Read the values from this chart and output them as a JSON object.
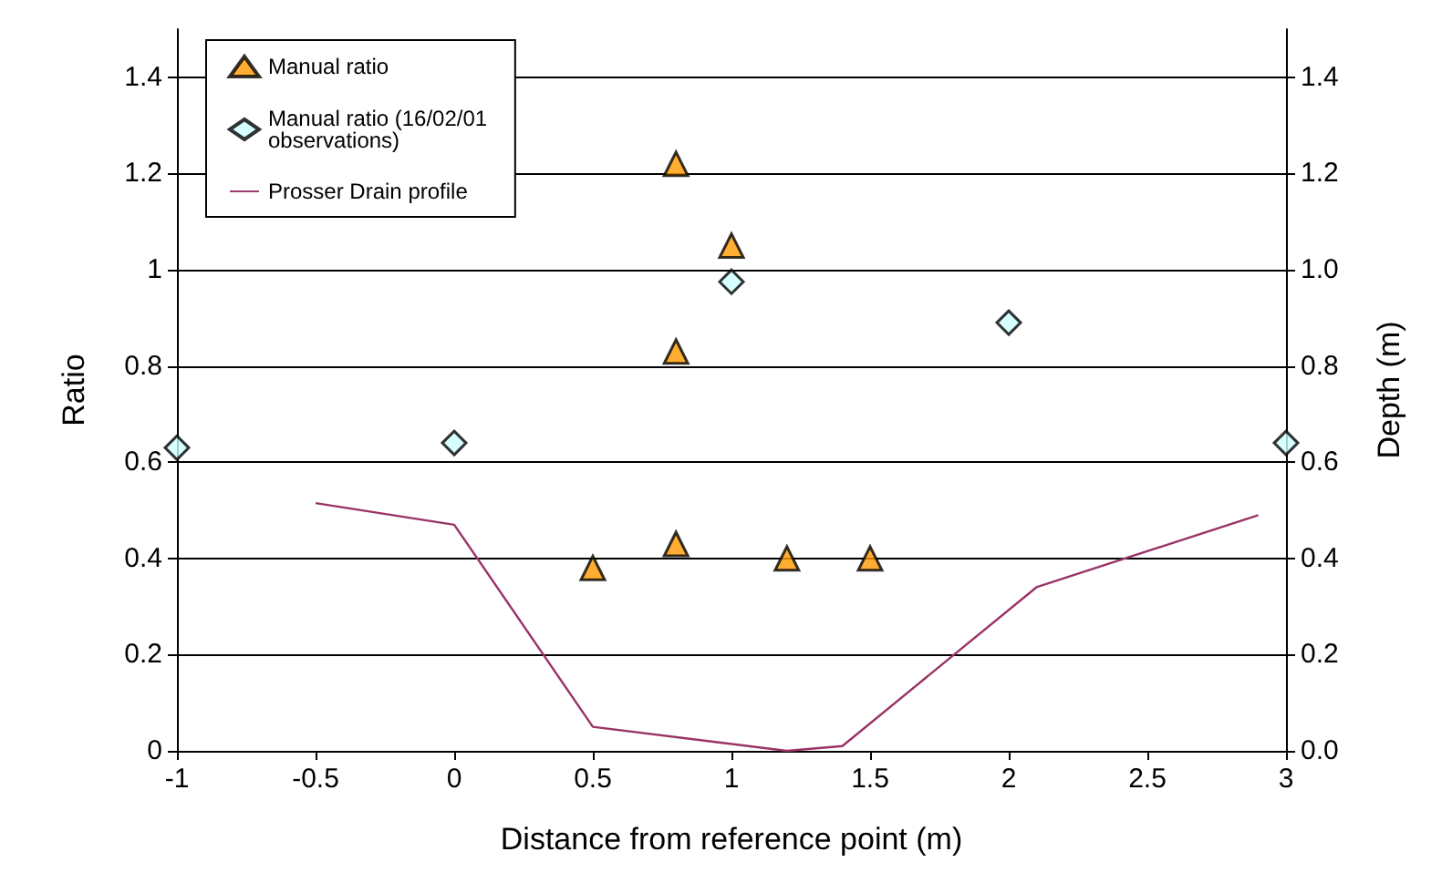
{
  "chart_data": {
    "type": "scatter",
    "xlabel": "Distance from reference point (m)",
    "ylabel": "Ratio",
    "y2label": "Depth (m)",
    "xlim": [
      -1,
      3
    ],
    "xticks": [
      -1,
      -0.5,
      0,
      0.5,
      1,
      1.5,
      2,
      2.5,
      3
    ],
    "ylim": [
      0,
      1.5
    ],
    "yticks": [
      0,
      0.2,
      0.4,
      0.6,
      0.8,
      1,
      1.2,
      1.4
    ],
    "y2lim": [
      0,
      1.5
    ],
    "y2ticks": [
      {
        "value": 0,
        "label": "0.0"
      },
      {
        "value": 0.2,
        "label": "0.2"
      },
      {
        "value": 0.4,
        "label": "0.4"
      },
      {
        "value": 0.6,
        "label": "0.6"
      },
      {
        "value": 0.8,
        "label": "0.8"
      },
      {
        "value": 1,
        "label": "1.0"
      },
      {
        "value": 1.2,
        "label": "1.2"
      },
      {
        "value": 1.4,
        "label": "1.4"
      }
    ],
    "grid": "y",
    "legend": "top left",
    "series": [
      {
        "name": "Manual ratio",
        "marker": "triangle",
        "color": "#ff9900",
        "x": [
          0.5,
          0.8,
          0.8,
          0.8,
          1,
          1.2,
          1.5
        ],
        "values": [
          0.38,
          1.22,
          0.83,
          0.43,
          1.05,
          0.4,
          0.4
        ]
      },
      {
        "name": "Manual ratio (16/02/01 observations)",
        "marker": "diamond",
        "color": "#ccffff",
        "x": [
          -1,
          0,
          1,
          2,
          3
        ],
        "values": [
          0.63,
          0.64,
          0.975,
          0.89,
          0.64
        ]
      },
      {
        "name": "Prosser Drain profile",
        "type": "line",
        "marker": "none",
        "axis": "y2",
        "color": "#993366",
        "x": [
          -0.5,
          0,
          0.5,
          1.2,
          1.4,
          2.1,
          2.9
        ],
        "values": [
          0.515,
          0.47,
          0.05,
          0,
          0.01,
          0.34,
          0.49
        ]
      }
    ]
  }
}
